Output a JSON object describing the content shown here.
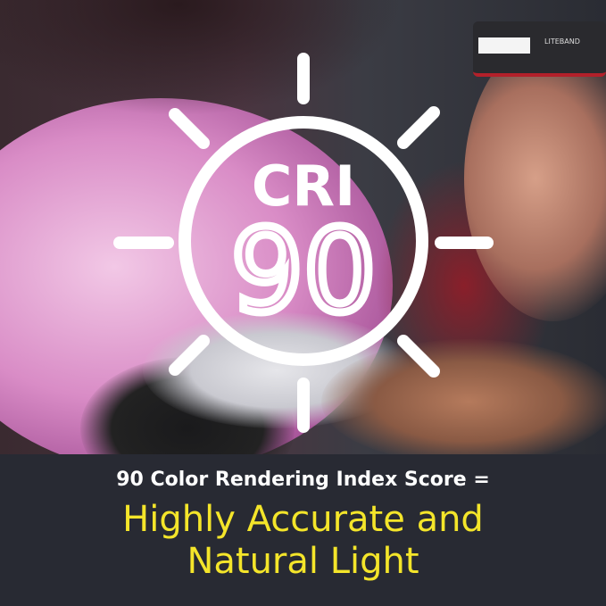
{
  "badge": {
    "label": "CRI",
    "value": "90",
    "icon": "sun-icon",
    "color": "#ffffff"
  },
  "product_label": "LITEBAND",
  "caption": {
    "subtitle": "90 Color Rendering Index Score =",
    "headline_line1": "Highly Accurate and",
    "headline_line2": "Natural Light",
    "headline_color": "#f4e52a",
    "background": "#282a33"
  }
}
